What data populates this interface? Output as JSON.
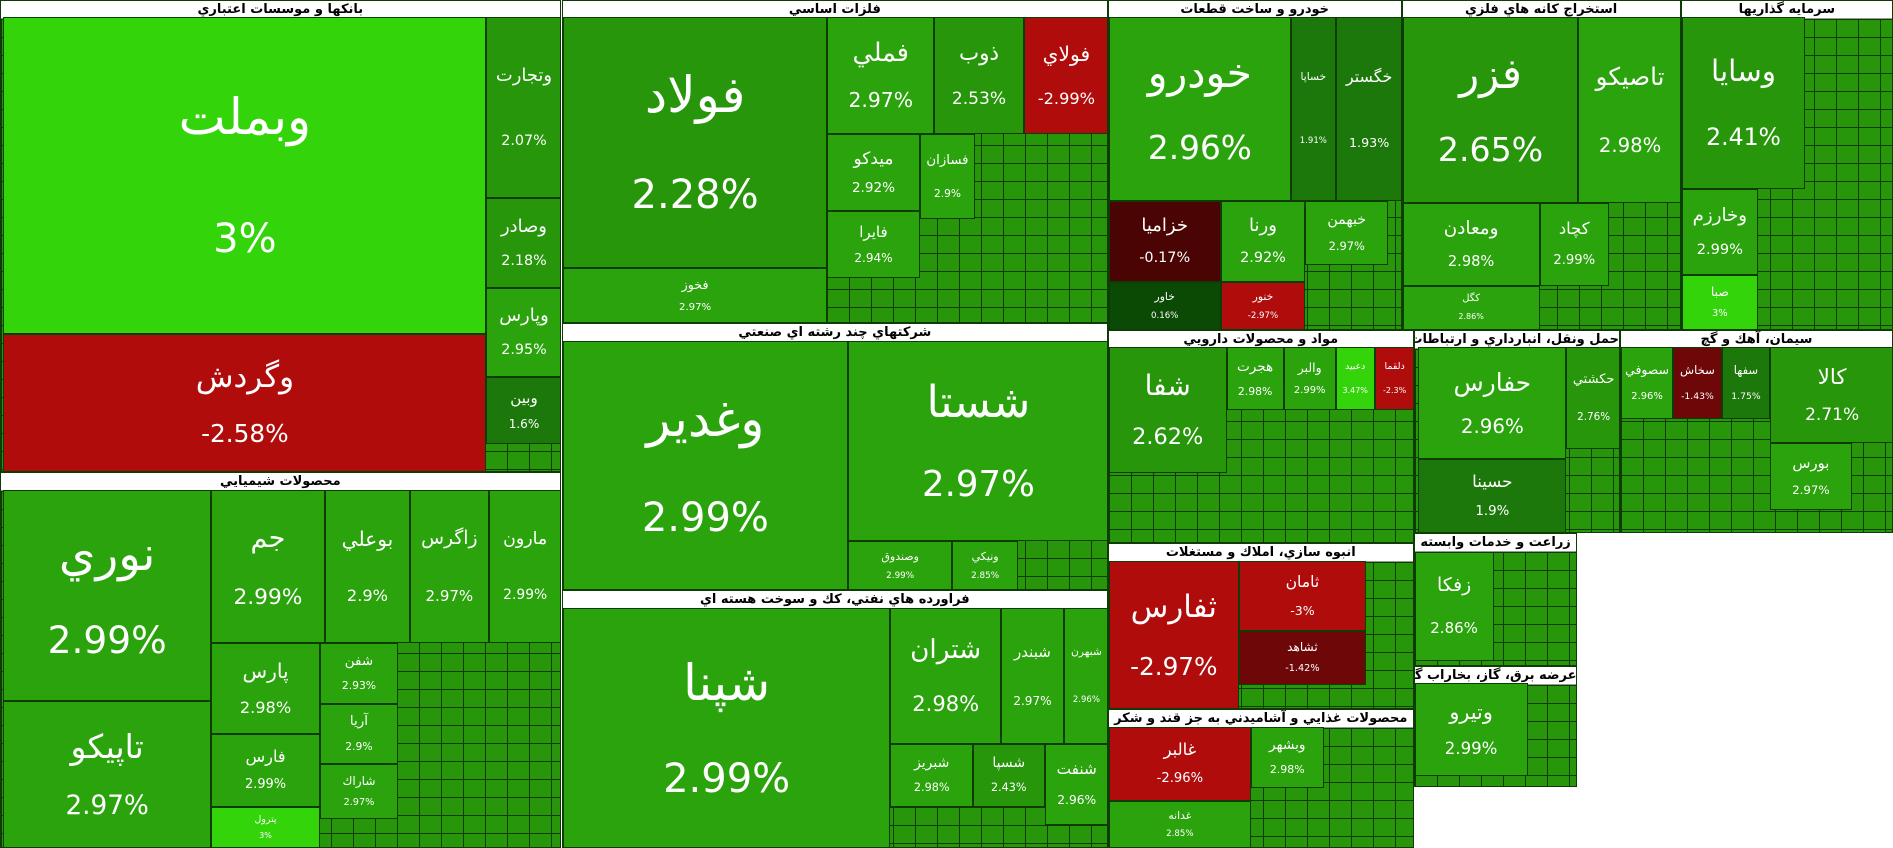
{
  "chart_data": {
    "type": "treemap",
    "sectors": [
      {
        "name": "بانکها و موسسات اعتباري",
        "tiles": [
          {
            "name": "وبملت",
            "value": 3,
            "value_label": "3%",
            "color": "#33d40a"
          },
          {
            "name": "وگردش",
            "value": -2.58,
            "value_label": "-2.58%",
            "color": "#b00c0c"
          },
          {
            "name": "وتجارت",
            "value": 2.07,
            "value_label": "2.07%",
            "color": "#27960b"
          },
          {
            "name": "وصادر",
            "value": 2.18,
            "value_label": "2.18%",
            "color": "#27960b"
          },
          {
            "name": "وپارس",
            "value": 2.95,
            "value_label": "2.95%",
            "color": "#2aa30c"
          },
          {
            "name": "وبين",
            "value": 1.6,
            "value_label": "1.6%",
            "color": "#1c780a"
          }
        ]
      },
      {
        "name": "محصولات شيميايي",
        "tiles": [
          {
            "name": "نوري",
            "value": 2.99,
            "value_label": "2.99%",
            "color": "#2aa30c"
          },
          {
            "name": "تاپيكو",
            "value": 2.97,
            "value_label": "2.97%",
            "color": "#2aa30c"
          },
          {
            "name": "جم",
            "value": 2.99,
            "value_label": "2.99%",
            "color": "#2aa30c"
          },
          {
            "name": "بوعلي",
            "value": 2.9,
            "value_label": "2.9%",
            "color": "#2aa30c"
          },
          {
            "name": "زاگرس",
            "value": 2.97,
            "value_label": "2.97%",
            "color": "#2aa30c"
          },
          {
            "name": "مارون",
            "value": 2.99,
            "value_label": "2.99%",
            "color": "#2aa30c"
          },
          {
            "name": "پارس",
            "value": 2.98,
            "value_label": "2.98%",
            "color": "#2aa30c"
          },
          {
            "name": "فارس",
            "value": 2.99,
            "value_label": "2.99%",
            "color": "#2aa30c"
          },
          {
            "name": "پترول",
            "value": 3,
            "value_label": "3%",
            "color": "#33d40a"
          },
          {
            "name": "شفن",
            "value": 2.93,
            "value_label": "2.93%",
            "color": "#2aa30c"
          },
          {
            "name": "آريا",
            "value": 2.9,
            "value_label": "2.9%",
            "color": "#2aa30c"
          },
          {
            "name": "شاراك",
            "value": 2.97,
            "value_label": "2.97%",
            "color": "#2aa30c"
          }
        ]
      },
      {
        "name": "فلزات اساسي",
        "tiles": [
          {
            "name": "فولاد",
            "value": 2.28,
            "value_label": "2.28%",
            "color": "#27960b"
          },
          {
            "name": "فخوز",
            "value": 2.97,
            "value_label": "2.97%",
            "color": "#2aa30c"
          },
          {
            "name": "فملي",
            "value": 2.97,
            "value_label": "2.97%",
            "color": "#2aa30c"
          },
          {
            "name": "ذوب",
            "value": 2.53,
            "value_label": "2.53%",
            "color": "#27960b"
          },
          {
            "name": "فولاي",
            "value": -2.99,
            "value_label": "-2.99%",
            "color": "#b00c0c"
          },
          {
            "name": "ميدكو",
            "value": 2.92,
            "value_label": "2.92%",
            "color": "#2aa30c"
          },
          {
            "name": "فايرا",
            "value": 2.94,
            "value_label": "2.94%",
            "color": "#2aa30c"
          },
          {
            "name": "فسازان",
            "value": 2.9,
            "value_label": "2.9%",
            "color": "#2aa30c"
          }
        ]
      },
      {
        "name": "شركتهاي چند رشته اي صنعتي",
        "tiles": [
          {
            "name": "وغدير",
            "value": 2.99,
            "value_label": "2.99%",
            "color": "#2aa30c"
          },
          {
            "name": "شستا",
            "value": 2.97,
            "value_label": "2.97%",
            "color": "#2aa30c"
          },
          {
            "name": "وصندوق",
            "value": 2.99,
            "value_label": "2.99%",
            "color": "#2aa30c"
          },
          {
            "name": "ونيكي",
            "value": 2.85,
            "value_label": "2.85%",
            "color": "#2aa30c"
          }
        ]
      },
      {
        "name": "فراورده هاي نفتي، كك و سوخت هسته اي",
        "tiles": [
          {
            "name": "شپنا",
            "value": 2.99,
            "value_label": "2.99%",
            "color": "#2aa30c"
          },
          {
            "name": "شتران",
            "value": 2.98,
            "value_label": "2.98%",
            "color": "#2aa30c"
          },
          {
            "name": "شبندر",
            "value": 2.97,
            "value_label": "2.97%",
            "color": "#2aa30c"
          },
          {
            "name": "شبهرن",
            "value": 2.96,
            "value_label": "2.96%",
            "color": "#2aa30c"
          },
          {
            "name": "شبريز",
            "value": 2.98,
            "value_label": "2.98%",
            "color": "#2aa30c"
          },
          {
            "name": "شسپا",
            "value": 2.43,
            "value_label": "2.43%",
            "color": "#27960b"
          },
          {
            "name": "شنفت",
            "value": 2.96,
            "value_label": "2.96%",
            "color": "#2aa30c"
          }
        ]
      },
      {
        "name": "خودرو و ساخت قطعات",
        "tiles": [
          {
            "name": "خودرو",
            "value": 2.96,
            "value_label": "2.96%",
            "color": "#2aa30c"
          },
          {
            "name": "خساپا",
            "value": 1.91,
            "value_label": "1.91%",
            "color": "#1c780a"
          },
          {
            "name": "خگستر",
            "value": 1.93,
            "value_label": "1.93%",
            "color": "#1c780a"
          },
          {
            "name": "خزامیا",
            "value": -0.17,
            "value_label": "-0.17%",
            "color": "#4a0404"
          },
          {
            "name": "خاور",
            "value": 0.16,
            "value_label": "0.16%",
            "color": "#0b4a04"
          },
          {
            "name": "ورنا",
            "value": 2.92,
            "value_label": "2.92%",
            "color": "#2aa30c"
          },
          {
            "name": "خنور",
            "value": -2.97,
            "value_label": "-2.97%",
            "color": "#b00c0c"
          },
          {
            "name": "خبهمن",
            "value": 2.97,
            "value_label": "2.97%",
            "color": "#2aa30c"
          }
        ]
      },
      {
        "name": "استخراج كانه هاي فلزي",
        "tiles": [
          {
            "name": "فزر",
            "value": 2.65,
            "value_label": "2.65%",
            "color": "#27960b"
          },
          {
            "name": "تاصيكو",
            "value": 2.98,
            "value_label": "2.98%",
            "color": "#2aa30c"
          },
          {
            "name": "ومعادن",
            "value": 2.98,
            "value_label": "2.98%",
            "color": "#2aa30c"
          },
          {
            "name": "كچاد",
            "value": 2.99,
            "value_label": "2.99%",
            "color": "#2aa30c"
          },
          {
            "name": "كگل",
            "value": 2.86,
            "value_label": "2.86%",
            "color": "#2aa30c"
          }
        ]
      },
      {
        "name": "سرمايه گذاريها",
        "tiles": [
          {
            "name": "وسايا",
            "value": 2.41,
            "value_label": "2.41%",
            "color": "#27960b"
          },
          {
            "name": "وخارزم",
            "value": 2.99,
            "value_label": "2.99%",
            "color": "#2aa30c"
          },
          {
            "name": "صبا",
            "value": 3,
            "value_label": "3%",
            "color": "#33d40a"
          }
        ]
      },
      {
        "name": "مواد و محصولات دارويي",
        "tiles": [
          {
            "name": "شفا",
            "value": 2.62,
            "value_label": "2.62%",
            "color": "#27960b"
          },
          {
            "name": "هجرت",
            "value": 2.98,
            "value_label": "2.98%",
            "color": "#2aa30c"
          },
          {
            "name": "والبر",
            "value": 2.99,
            "value_label": "2.99%",
            "color": "#2aa30c"
          },
          {
            "name": "دعبيد",
            "value": 3.47,
            "value_label": "3.47%",
            "color": "#33d40a"
          },
          {
            "name": "دلقما",
            "value": -2.3,
            "value_label": "-2.3%",
            "color": "#b00c0c"
          }
        ]
      },
      {
        "name": "انبوه سازي، املاك و مستغلات",
        "tiles": [
          {
            "name": "ثفارس",
            "value": -2.97,
            "value_label": "-2.97%",
            "color": "#b00c0c"
          },
          {
            "name": "ثامان",
            "value": -3,
            "value_label": "-3%",
            "color": "#b00c0c"
          },
          {
            "name": "ثشاهد",
            "value": -1.42,
            "value_label": "-1.42%",
            "color": "#6e0808"
          }
        ]
      },
      {
        "name": "محصولات غذايي و آشاميدني به جز قند و شكر",
        "tiles": [
          {
            "name": "غالبر",
            "value": -2.96,
            "value_label": "-2.96%",
            "color": "#b00c0c"
          },
          {
            "name": "غدانه",
            "value": 2.85,
            "value_label": "2.85%",
            "color": "#2aa30c"
          },
          {
            "name": "وبشهر",
            "value": 2.98,
            "value_label": "2.98%",
            "color": "#2aa30c"
          }
        ]
      },
      {
        "name": "حمل ونقل، انبارداري و ارتباطات",
        "tiles": [
          {
            "name": "حفارس",
            "value": 2.96,
            "value_label": "2.96%",
            "color": "#2aa30c"
          },
          {
            "name": "حسينا",
            "value": 1.9,
            "value_label": "1.9%",
            "color": "#1c780a"
          },
          {
            "name": "حكشتي",
            "value": 2.76,
            "value_label": "2.76%",
            "color": "#27960b"
          }
        ]
      },
      {
        "name": "سيمان، آهك و گچ",
        "tiles": [
          {
            "name": "سصوفي",
            "value": 2.96,
            "value_label": "2.96%",
            "color": "#2aa30c"
          },
          {
            "name": "سخاش",
            "value": -1.43,
            "value_label": "-1.43%",
            "color": "#6e0808"
          },
          {
            "name": "سفها",
            "value": 1.75,
            "value_label": "1.75%",
            "color": "#1c780a"
          },
          {
            "name": "كالا",
            "value": 2.71,
            "value_label": "2.71%",
            "color": "#27960b"
          },
          {
            "name": "بورس",
            "value": 2.97,
            "value_label": "2.97%",
            "color": "#2aa30c"
          }
        ]
      },
      {
        "name": "زراعت و خدمات وابسته",
        "tiles": [
          {
            "name": "زفكا",
            "value": 2.86,
            "value_label": "2.86%",
            "color": "#2aa30c"
          }
        ]
      },
      {
        "name": "عرضه برق، گاز، بخاراب گرم",
        "tiles": [
          {
            "name": "وتيرو",
            "value": 2.99,
            "value_label": "2.99%",
            "color": "#2aa30c"
          }
        ]
      }
    ]
  }
}
